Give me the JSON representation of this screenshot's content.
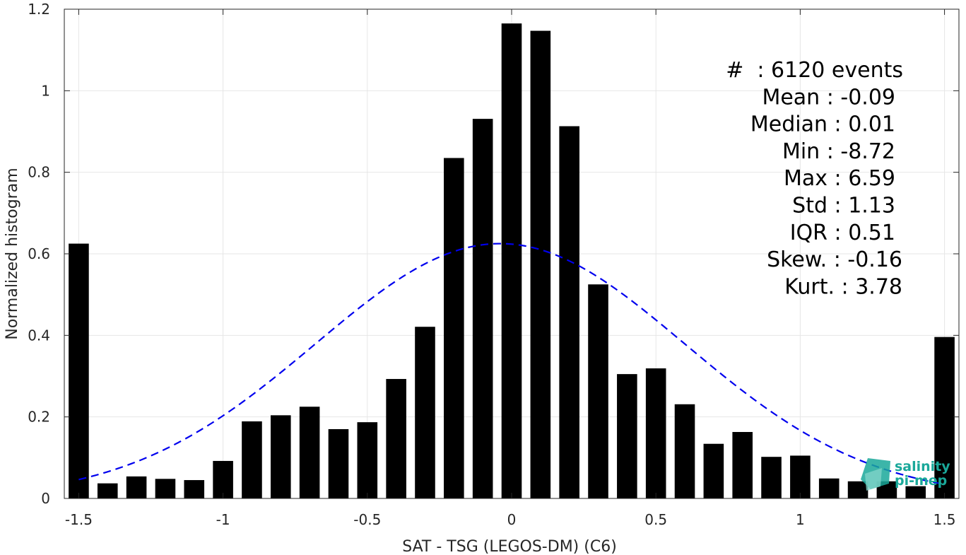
{
  "chart_data": {
    "type": "bar",
    "xlabel": "SAT - TSG (LEGOS-DM) (C6)",
    "ylabel": "Normalized histogram",
    "xlim": [
      -1.55,
      1.55
    ],
    "ylim": [
      0,
      1.2
    ],
    "xticks": [
      -1.5,
      -1,
      -0.5,
      0,
      0.5,
      1,
      1.5
    ],
    "xtick_labels": [
      "-1.5",
      "-1",
      "-0.5",
      "0",
      "0.5",
      "1",
      "1.5"
    ],
    "yticks": [
      0,
      0.2,
      0.4,
      0.6,
      0.8,
      1,
      1.2
    ],
    "ytick_labels": [
      "0",
      "0.2",
      "0.4",
      "0.6",
      "0.8",
      "1",
      "1.2"
    ],
    "grid": true,
    "bar_width": 0.07,
    "x": [
      -1.5,
      -1.4,
      -1.3,
      -1.2,
      -1.1,
      -1.0,
      -0.9,
      -0.8,
      -0.7,
      -0.6,
      -0.5,
      -0.4,
      -0.3,
      -0.2,
      -0.1,
      0.0,
      0.1,
      0.2,
      0.3,
      0.4,
      0.5,
      0.6,
      0.7,
      0.8,
      0.9,
      1.0,
      1.1,
      1.2,
      1.3,
      1.4,
      1.5
    ],
    "values": [
      0.625,
      0.037,
      0.054,
      0.048,
      0.045,
      0.092,
      0.189,
      0.204,
      0.225,
      0.17,
      0.187,
      0.293,
      0.421,
      0.835,
      0.931,
      1.165,
      1.147,
      0.913,
      0.525,
      0.305,
      0.319,
      0.231,
      0.134,
      0.163,
      0.102,
      0.105,
      0.049,
      0.042,
      0.042,
      0.03,
      0.396
    ],
    "bar_color": "#000000",
    "fit_curve": {
      "style": "dashed",
      "color": "#0000ee",
      "mean": -0.04,
      "std": 0.64,
      "peak": 0.625,
      "x_range": [
        -1.5,
        1.5
      ]
    },
    "stats": [
      "#  : 6120 events",
      "Mean : -0.09",
      "Median : 0.01",
      "Min : -8.72",
      "Max : 6.59",
      "Std : 1.13",
      "IQR : 0.51",
      "Skew. : -0.16",
      "Kurt. : 3.78"
    ]
  },
  "logo": {
    "line1": "salinity",
    "line2": "pi-mep",
    "color": "#1aa89a"
  }
}
